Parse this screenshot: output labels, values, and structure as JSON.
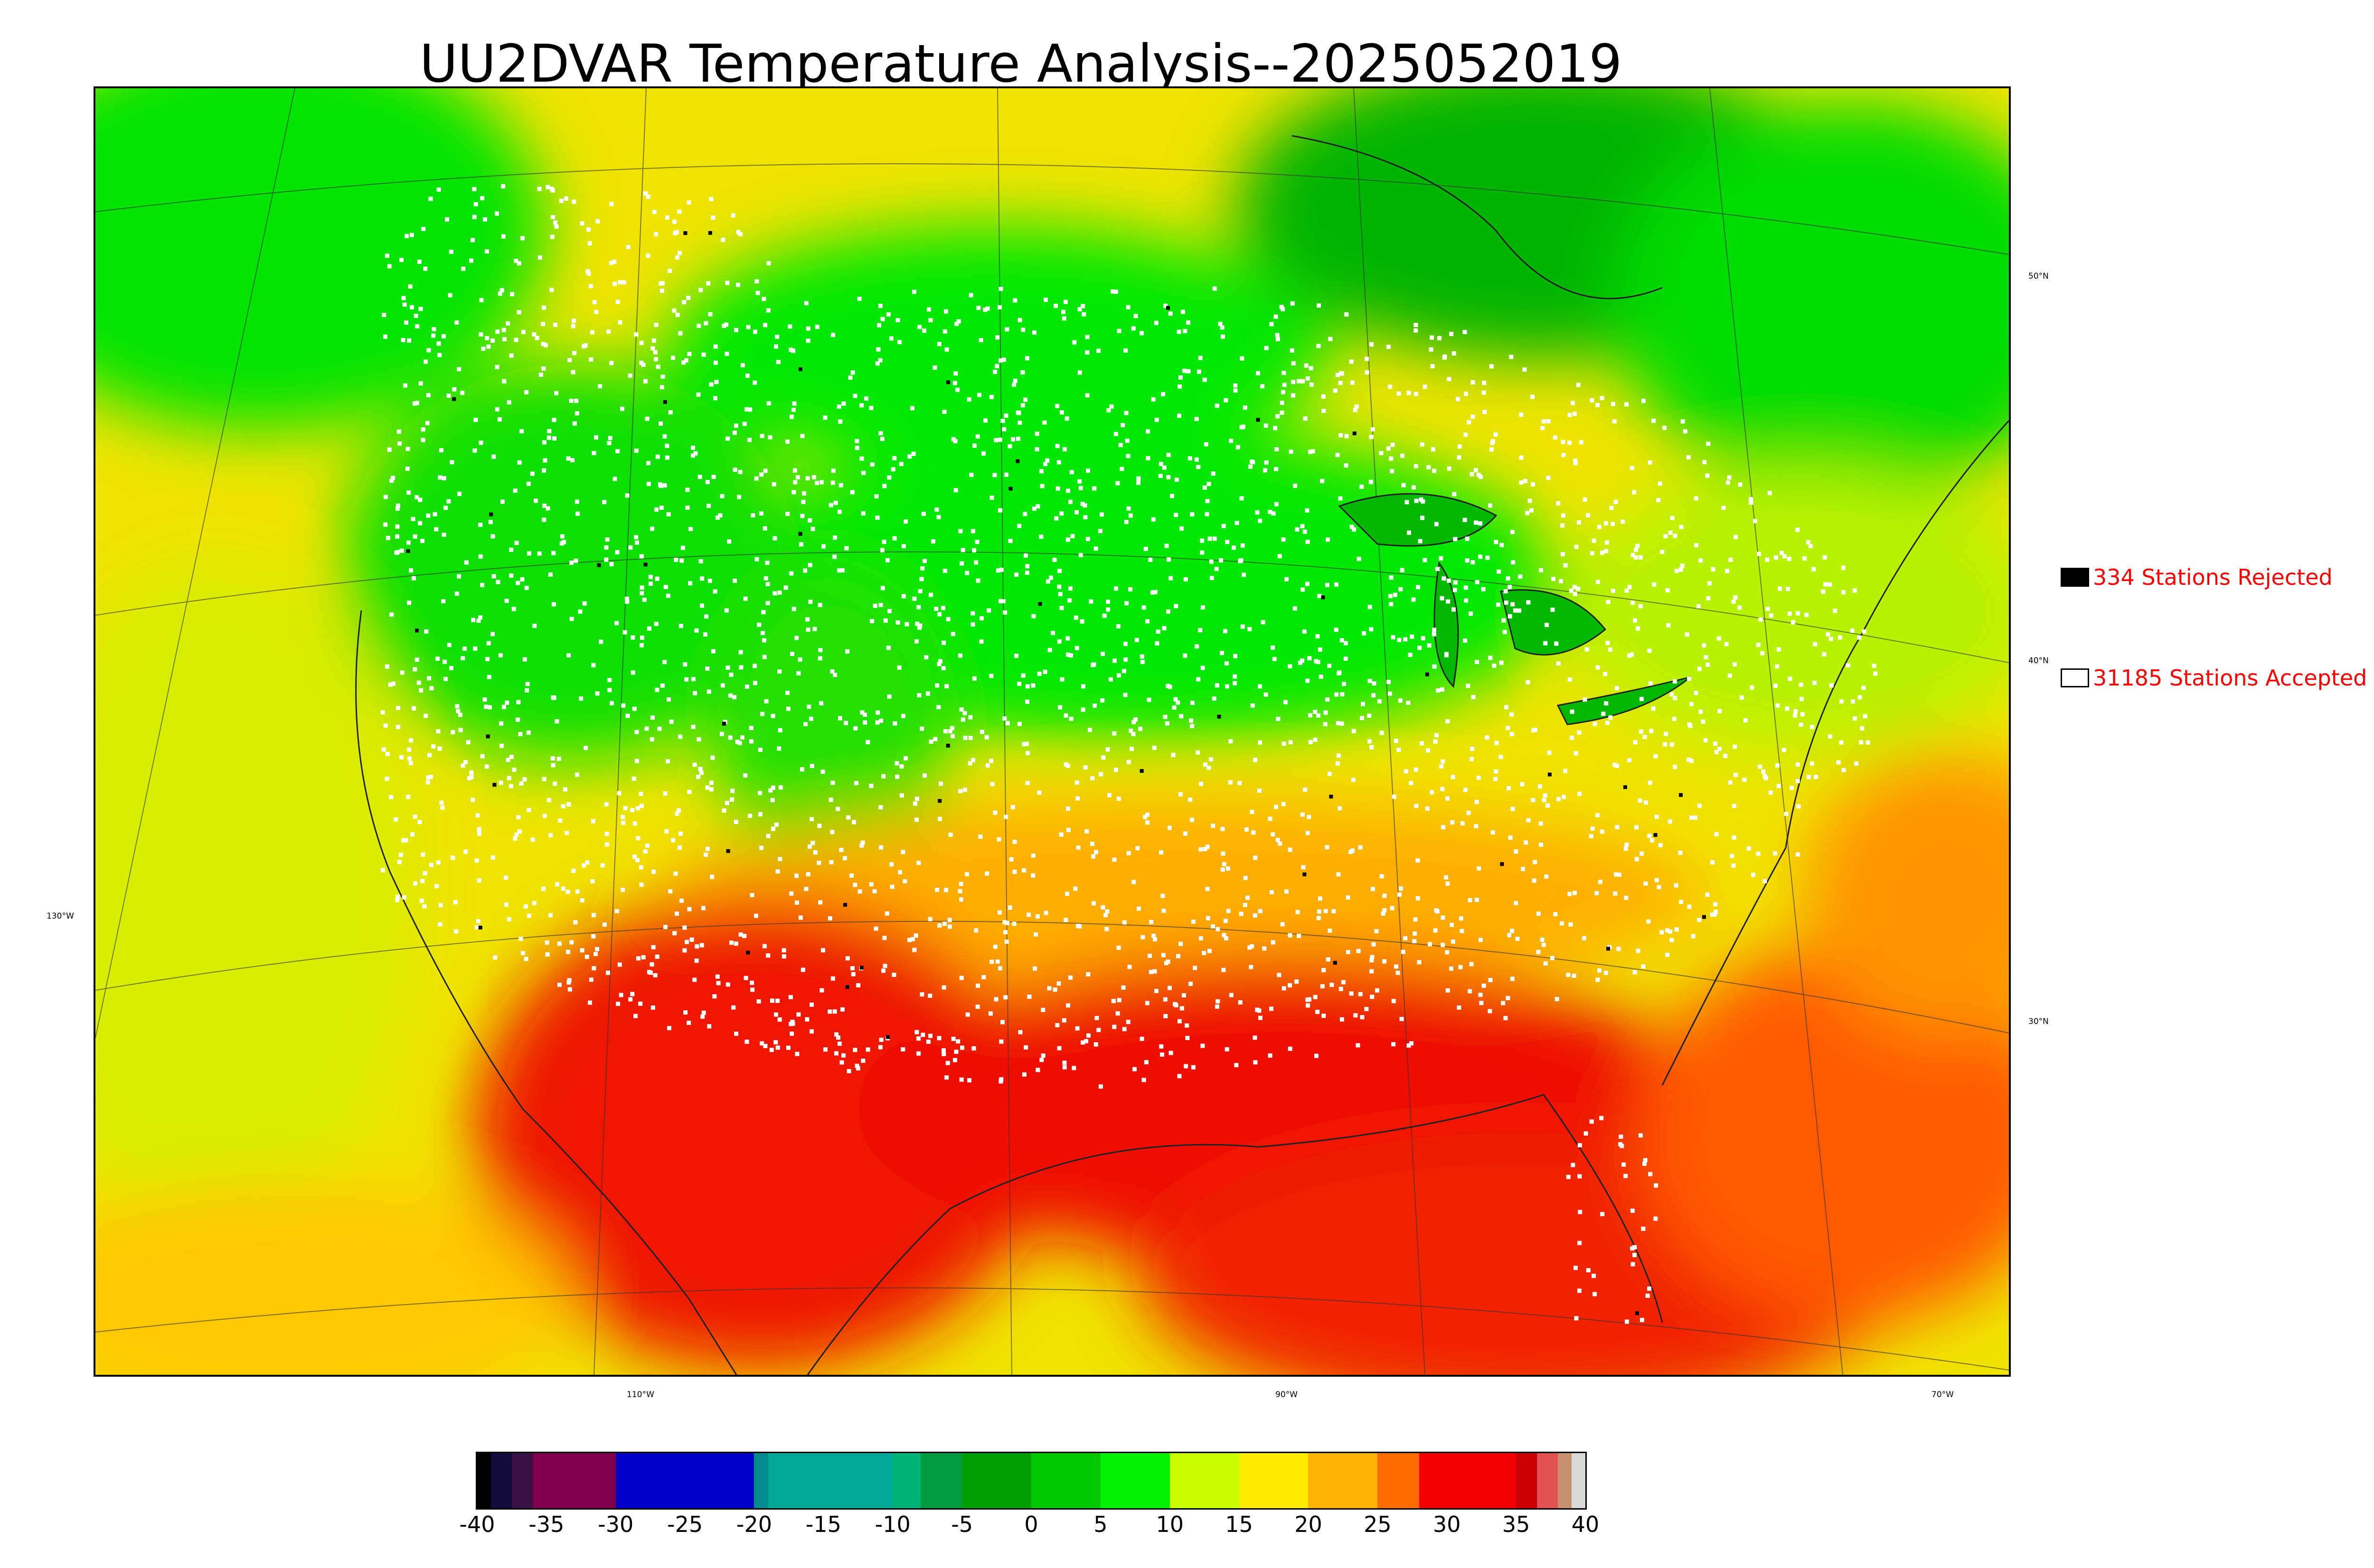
{
  "title": "UU2DVAR Temperature Analysis--2025052019",
  "legend": {
    "rejected": {
      "label": "334 Stations Rejected",
      "swatch_color": "#000000",
      "text_color": "#ff0000"
    },
    "accepted": {
      "label": "31185 Stations Accepted",
      "swatch_color": "#ffffff",
      "text_color": "#ff0000"
    }
  },
  "graticule": {
    "lat_labels": [
      "50°N",
      "40°N",
      "30°N"
    ],
    "lon_labels": [
      "130°W",
      "110°W",
      "90°W",
      "70°W"
    ]
  },
  "colorbar": {
    "min": -40,
    "max": 40,
    "tick_labels": [
      "-40",
      "-35",
      "-30",
      "-25",
      "-20",
      "-15",
      "-10",
      "-5",
      "0",
      "5",
      "10",
      "15",
      "20",
      "25",
      "30",
      "35",
      "40"
    ],
    "bands": [
      {
        "from": -40,
        "to": -39,
        "color": "#000000"
      },
      {
        "from": -39,
        "to": -37.5,
        "color": "#120a3a"
      },
      {
        "from": -37.5,
        "to": -36,
        "color": "#3a1046"
      },
      {
        "from": -36,
        "to": -30,
        "color": "#800050"
      },
      {
        "from": -30,
        "to": -20,
        "color": "#0000c8"
      },
      {
        "from": -20,
        "to": -19,
        "color": "#008c8c"
      },
      {
        "from": -19,
        "to": -10,
        "color": "#00a896"
      },
      {
        "from": -10,
        "to": -8,
        "color": "#00b478"
      },
      {
        "from": -8,
        "to": -5,
        "color": "#009a40"
      },
      {
        "from": -5,
        "to": 0,
        "color": "#00a000"
      },
      {
        "from": 0,
        "to": 5,
        "color": "#00c800"
      },
      {
        "from": 5,
        "to": 10,
        "color": "#00f000"
      },
      {
        "from": 10,
        "to": 15,
        "color": "#c8ff00"
      },
      {
        "from": 15,
        "to": 20,
        "color": "#ffeb00"
      },
      {
        "from": 20,
        "to": 25,
        "color": "#ffb400"
      },
      {
        "from": 25,
        "to": 28,
        "color": "#ff6a00"
      },
      {
        "from": 28,
        "to": 35,
        "color": "#f00000"
      },
      {
        "from": 35,
        "to": 36.5,
        "color": "#c80000"
      },
      {
        "from": 36.5,
        "to": 38,
        "color": "#e05050"
      },
      {
        "from": 38,
        "to": 39,
        "color": "#c8906e"
      },
      {
        "from": 39,
        "to": 40,
        "color": "#d8d8d8"
      }
    ]
  },
  "colors": {
    "cold": "#00e000",
    "cool": "#7cf000",
    "mild": "#f2e600",
    "warm": "#ffb400",
    "hot": "#ee1000",
    "station_accepted": "#ffffff",
    "station_rejected": "#000000"
  }
}
